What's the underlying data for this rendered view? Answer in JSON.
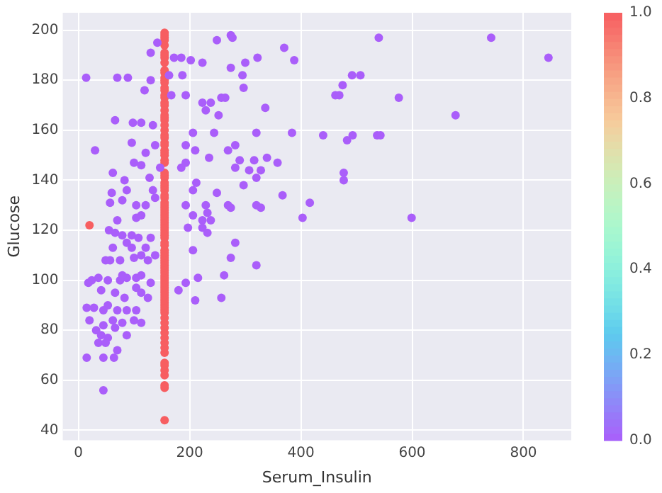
{
  "chart_data": {
    "type": "scatter",
    "xlabel": "Serum_Insulin",
    "ylabel": "Glucose",
    "xlim": [
      -28,
      886
    ],
    "ylim": [
      36,
      207
    ],
    "xticks": [
      0,
      200,
      400,
      600,
      800
    ],
    "yticks": [
      40,
      60,
      80,
      100,
      120,
      140,
      160,
      180,
      200
    ],
    "grid": true,
    "marker": "circle",
    "clim": [
      0,
      1
    ],
    "cticks": [
      {
        "value": 0,
        "label": "0.0"
      },
      {
        "value": 0.2,
        "label": "0.2"
      },
      {
        "value": 0.4,
        "label": "0.4"
      },
      {
        "value": 0.6,
        "label": "0.6"
      },
      {
        "value": 0.8,
        "label": "0.8"
      },
      {
        "value": 1,
        "label": "1.0"
      }
    ],
    "series": [
      {
        "x": [
          14,
          70,
          89,
          30,
          66,
          130,
          119,
          142,
          130,
          98,
          113,
          96,
          134,
          138,
          121,
          147,
          100,
          113,
          62,
          83,
          87,
          60,
          128,
          134,
          138,
          57,
          79,
          104,
          121,
          113,
          104,
          70,
          55,
          66,
          79,
          96,
          108,
          130,
          87,
          62,
          96,
          121,
          138,
          113,
          100,
          125,
          75,
          57,
          49,
          36,
          53,
          75,
          87,
          79,
          104,
          113,
          130,
          24,
          18,
          41,
          66,
          83,
          104,
          113,
          125,
          28,
          15,
          45,
          53,
          70,
          87,
          104,
          100,
          113,
          79,
          62,
          45,
          32,
          41,
          66,
          87,
          53,
          36,
          49,
          70,
          15,
          45,
          64,
          45,
          20,
          172,
          185,
          202,
          223,
          163,
          187,
          167,
          193,
          223,
          238,
          229,
          257,
          252,
          206,
          244,
          193,
          210,
          269,
          282,
          290,
          235,
          193,
          185,
          282,
          307,
          316,
          328,
          339,
          358,
          320,
          367,
          249,
          206,
          212,
          193,
          229,
          269,
          274,
          320,
          328,
          206,
          223,
          238,
          232,
          223,
          232,
          197,
          206,
          282,
          274,
          262,
          215,
          193,
          257,
          210,
          180,
          320,
          274,
          249,
          277,
          274,
          300,
          322,
          295,
          297,
          264,
          297,
          336,
          320,
          370,
          388,
          384,
          403,
          416,
          440,
          462,
          469,
          475,
          492,
          507,
          540,
          576,
          483,
          493,
          537,
          543,
          477,
          477,
          599,
          678,
          742,
          845
        ],
        "values": [
          181,
          181,
          181,
          152,
          164,
          180,
          176,
          195,
          191,
          163,
          163,
          155,
          162,
          154,
          151,
          145,
          147,
          146,
          143,
          140,
          136,
          135,
          141,
          136,
          133,
          131,
          132,
          130,
          130,
          126,
          125,
          124,
          120,
          119,
          118,
          118,
          117,
          117,
          115,
          113,
          113,
          113,
          110,
          110,
          109,
          108,
          108,
          108,
          108,
          101,
          100,
          100,
          101,
          102,
          101,
          102,
          99,
          100,
          99,
          96,
          95,
          93,
          97,
          95,
          93,
          89,
          89,
          88,
          90,
          88,
          88,
          88,
          84,
          83,
          83,
          84,
          82,
          80,
          78,
          81,
          78,
          77,
          75,
          75,
          72,
          69,
          69,
          69,
          56,
          84,
          189,
          189,
          188,
          187,
          182,
          182,
          174,
          174,
          171,
          171,
          168,
          173,
          166,
          159,
          159,
          154,
          152,
          152,
          154,
          148,
          149,
          147,
          145,
          145,
          144,
          148,
          144,
          149,
          147,
          141,
          134,
          135,
          136,
          139,
          130,
          130,
          130,
          129,
          130,
          129,
          126,
          124,
          124,
          127,
          121,
          119,
          121,
          112,
          115,
          109,
          102,
          101,
          99,
          93,
          92,
          96,
          106,
          198,
          196,
          197,
          185,
          187,
          189,
          182,
          177,
          173,
          138,
          169,
          159,
          193,
          188,
          159,
          125,
          131,
          158,
          174,
          174,
          178,
          182,
          182,
          197,
          173,
          156,
          158,
          158,
          158,
          143,
          140,
          125,
          166,
          197,
          189
        ],
        "cvalues": [
          0,
          0,
          0,
          0,
          0,
          0,
          0,
          0,
          0,
          0,
          0,
          0,
          0,
          0,
          0,
          0,
          0,
          0,
          0,
          0,
          0,
          0,
          0,
          0,
          0,
          0,
          0,
          0,
          0,
          0,
          0,
          0,
          0,
          0,
          0,
          0,
          0,
          0,
          0,
          0,
          0,
          0,
          0,
          0,
          0,
          0,
          0,
          0,
          0,
          0,
          0,
          0,
          0,
          0,
          0,
          0,
          0,
          0,
          0,
          0,
          0,
          0,
          0,
          0,
          0,
          0,
          0,
          0,
          0,
          0,
          0,
          0,
          0,
          0,
          0,
          0,
          0,
          0,
          0,
          0,
          0,
          0,
          0,
          0,
          0,
          0,
          0,
          0,
          0,
          0,
          0,
          0,
          0,
          0,
          0,
          0,
          0,
          0,
          0,
          0,
          0,
          0,
          0,
          0,
          0,
          0,
          0,
          0,
          0,
          0,
          0,
          0,
          0,
          0,
          0,
          0,
          0,
          0,
          0,
          0,
          0,
          0,
          0,
          0,
          0,
          0,
          0,
          0,
          0,
          0,
          0,
          0,
          0,
          0,
          0,
          0,
          0,
          0,
          0,
          0,
          0,
          0,
          0,
          0,
          0,
          0,
          0,
          0,
          0,
          0,
          0,
          0,
          0,
          0,
          0,
          0,
          0,
          0,
          0,
          0,
          0,
          0,
          0,
          0,
          0,
          0,
          0,
          0,
          0,
          0,
          0,
          0,
          0,
          0,
          0,
          0,
          0,
          0,
          0,
          0,
          0,
          0
        ]
      },
      {
        "x": [
          20,
          155,
          155,
          155,
          155,
          155,
          155,
          155,
          155,
          155,
          155,
          155,
          155,
          155,
          155,
          155,
          155,
          155,
          155,
          155,
          155,
          155,
          155,
          155,
          155,
          155,
          155,
          155,
          155,
          155,
          155,
          155,
          155,
          155,
          155,
          155,
          155,
          155,
          155,
          155,
          155,
          155,
          155,
          155,
          155,
          155,
          155,
          155,
          155,
          155,
          155,
          155,
          155,
          155,
          155,
          155,
          155,
          155,
          155,
          155,
          155,
          155,
          155,
          155,
          155,
          155,
          155,
          155,
          155,
          155,
          155,
          155,
          155,
          155,
          155,
          155,
          155,
          155,
          155,
          155,
          155,
          155,
          155,
          155,
          155,
          155,
          155,
          155,
          155,
          155,
          155,
          155,
          155,
          155,
          155,
          155,
          155,
          155,
          155,
          155,
          155,
          155,
          155
        ],
        "values": [
          122,
          44,
          57,
          58,
          62,
          64,
          66,
          67,
          71,
          73,
          75,
          77,
          79,
          81,
          83,
          85,
          87,
          88,
          89,
          90,
          91,
          92,
          93,
          94,
          95,
          96,
          97,
          98,
          99,
          100,
          101,
          102,
          103,
          104,
          105,
          106,
          107,
          108,
          109,
          110,
          111,
          112,
          114,
          115,
          117,
          118,
          119,
          120,
          121,
          122,
          123,
          124,
          125,
          126,
          127,
          128,
          129,
          130,
          131,
          133,
          134,
          136,
          137,
          138,
          139,
          141,
          142,
          143,
          147,
          148,
          150,
          151,
          152,
          154,
          155,
          157,
          158,
          160,
          162,
          164,
          165,
          166,
          168,
          170,
          171,
          173,
          174,
          176,
          177,
          179,
          180,
          181,
          183,
          184,
          187,
          189,
          190,
          191,
          194,
          196,
          197,
          198,
          199
        ],
        "cvalues": [
          1,
          1,
          1,
          1,
          1,
          1,
          1,
          1,
          1,
          1,
          1,
          1,
          1,
          1,
          1,
          1,
          1,
          1,
          1,
          1,
          1,
          1,
          1,
          1,
          1,
          1,
          1,
          1,
          1,
          1,
          1,
          1,
          1,
          1,
          1,
          1,
          1,
          1,
          1,
          1,
          1,
          1,
          1,
          1,
          1,
          1,
          1,
          1,
          1,
          1,
          1,
          1,
          1,
          1,
          1,
          1,
          1,
          1,
          1,
          1,
          1,
          1,
          1,
          1,
          1,
          1,
          1,
          1,
          1,
          1,
          1,
          1,
          1,
          1,
          1,
          1,
          1,
          1,
          1,
          1,
          1,
          1,
          1,
          1,
          1,
          1,
          1,
          1,
          1,
          1,
          1,
          1,
          1,
          1,
          1,
          1,
          1,
          1,
          1,
          1,
          1,
          1,
          1
        ]
      }
    ]
  }
}
